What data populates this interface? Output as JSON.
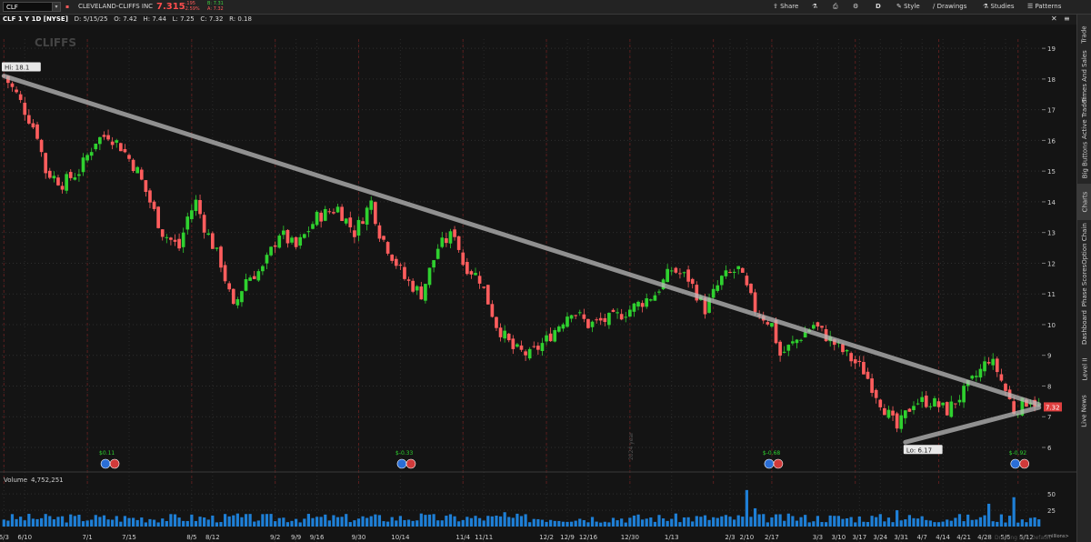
{
  "toolbar": {
    "symbol": "CLF",
    "company": "CLEVELAND-CLIFFS INC",
    "last": "7.315",
    "change_abs": "-.195",
    "change_pct": "-2.59%",
    "bid": "B: 7.31",
    "ask": "A: 7.32",
    "share": "Share",
    "aggregation": "D",
    "style": "Style",
    "drawings": "Drawings",
    "studies": "Studies",
    "patterns": "Patterns"
  },
  "subbar": {
    "title": "CLF 1 Y 1D [NYSE]",
    "date": "D: 5/15/25",
    "open": "O: 7.42",
    "high": "H: 7.44",
    "low": "L: 7.25",
    "close": "C: 7.32",
    "range": "R: 0.18"
  },
  "sidebar": {
    "tabs": [
      "Trade",
      "Times And Sales",
      "Active Trader",
      "Big Buttons",
      "Charts",
      "Option Chain",
      "Phase Scores",
      "Dashboard",
      "Level II",
      "Live News"
    ],
    "active": "Charts"
  },
  "chart_data": {
    "type": "candlestick",
    "watermark": "CLIFFS",
    "y_ticks": [
      "19",
      "18",
      "17",
      "16",
      "15",
      "14",
      "13",
      "12",
      "11",
      "10",
      "9",
      "8",
      "7",
      "6"
    ],
    "ylim": [
      5.2,
      19.3
    ],
    "x_ticks": [
      "6/3",
      "6/10",
      "7/1",
      "7/15",
      "8/5",
      "8/12",
      "9/2",
      "9/9",
      "9/16",
      "9/30",
      "10/14",
      "11/4",
      "11/11",
      "12/2",
      "12/9",
      "12/16",
      "12/30",
      "1/13",
      "2/3",
      "2/10",
      "2/17",
      "3/3",
      "3/10",
      "3/17",
      "3/24",
      "3/31",
      "4/7",
      "4/14",
      "4/21",
      "4/28",
      "5/5",
      "5/12"
    ],
    "x_tick_positions": [
      0,
      5,
      20,
      30,
      45,
      50,
      65,
      70,
      75,
      85,
      95,
      110,
      115,
      130,
      135,
      140,
      150,
      160,
      174,
      178,
      184,
      195,
      200,
      205,
      210,
      215,
      220,
      225,
      230,
      235,
      240,
      245
    ],
    "x_divider": "2024 year",
    "high_label": "Hi: 18.1",
    "low_label": "Lo: 6.17",
    "last_label": "7.32",
    "last_price": 7.32,
    "trendline_upper": [
      [
        0,
        18.1
      ],
      [
        248,
        7.4
      ]
    ],
    "trendline_lower": [
      [
        216,
        6.17
      ],
      [
        248,
        7.3
      ]
    ],
    "key_closes": [
      [
        0,
        18.1
      ],
      [
        3,
        17.5
      ],
      [
        8,
        16.2
      ],
      [
        10,
        15.0
      ],
      [
        14,
        14.6
      ],
      [
        18,
        15.0
      ],
      [
        22,
        16.0
      ],
      [
        25,
        16.2
      ],
      [
        28,
        15.8
      ],
      [
        32,
        15.0
      ],
      [
        35,
        14.0
      ],
      [
        38,
        13.0
      ],
      [
        42,
        12.5
      ],
      [
        44,
        13.5
      ],
      [
        46,
        14.0
      ],
      [
        48,
        13.2
      ],
      [
        52,
        12.0
      ],
      [
        55,
        10.5
      ],
      [
        58,
        11.5
      ],
      [
        62,
        11.8
      ],
      [
        66,
        13.0
      ],
      [
        70,
        12.5
      ],
      [
        75,
        13.5
      ],
      [
        80,
        13.8
      ],
      [
        84,
        13.0
      ],
      [
        88,
        14.0
      ],
      [
        90,
        13.0
      ],
      [
        92,
        12.5
      ],
      [
        96,
        11.5
      ],
      [
        100,
        11.0
      ],
      [
        104,
        12.5
      ],
      [
        108,
        13.0
      ],
      [
        110,
        12.0
      ],
      [
        114,
        11.5
      ],
      [
        118,
        10.0
      ],
      [
        122,
        9.2
      ],
      [
        126,
        9.0
      ],
      [
        130,
        9.5
      ],
      [
        136,
        10.5
      ],
      [
        140,
        10.0
      ],
      [
        146,
        10.2
      ],
      [
        150,
        10.5
      ],
      [
        156,
        11.0
      ],
      [
        160,
        11.8
      ],
      [
        164,
        11.5
      ],
      [
        168,
        10.5
      ],
      [
        172,
        11.5
      ],
      [
        176,
        11.8
      ],
      [
        180,
        10.5
      ],
      [
        184,
        10.0
      ],
      [
        186,
        9.0
      ],
      [
        190,
        9.5
      ],
      [
        194,
        10.0
      ],
      [
        198,
        9.5
      ],
      [
        202,
        9.0
      ],
      [
        206,
        8.5
      ],
      [
        210,
        7.5
      ],
      [
        214,
        6.6
      ],
      [
        218,
        7.5
      ],
      [
        222,
        7.5
      ],
      [
        226,
        7.2
      ],
      [
        230,
        7.8
      ],
      [
        234,
        8.5
      ],
      [
        236,
        8.9
      ],
      [
        238,
        8.5
      ],
      [
        242,
        7.2
      ],
      [
        246,
        7.6
      ],
      [
        248,
        7.32
      ]
    ],
    "events": [
      {
        "x": 25,
        "label": "$0.11"
      },
      {
        "x": 96,
        "label": "$-0.33"
      },
      {
        "x": 184,
        "label": "$-0.68"
      },
      {
        "x": 243,
        "label": "$-0.92"
      }
    ],
    "volume": {
      "label": "Volume",
      "value": "4,752,251",
      "y_ticks": [
        "50",
        "25"
      ],
      "units": "<millions>",
      "bar_count": 249,
      "spikes": [
        [
          100,
          20
        ],
        [
          178,
          56
        ],
        [
          214,
          25
        ],
        [
          236,
          35
        ],
        [
          242,
          45
        ],
        [
          180,
          28
        ],
        [
          120,
          22
        ],
        [
          56,
          20
        ]
      ]
    }
  },
  "footer": {
    "watermark_text": "Drawing set: Default"
  }
}
